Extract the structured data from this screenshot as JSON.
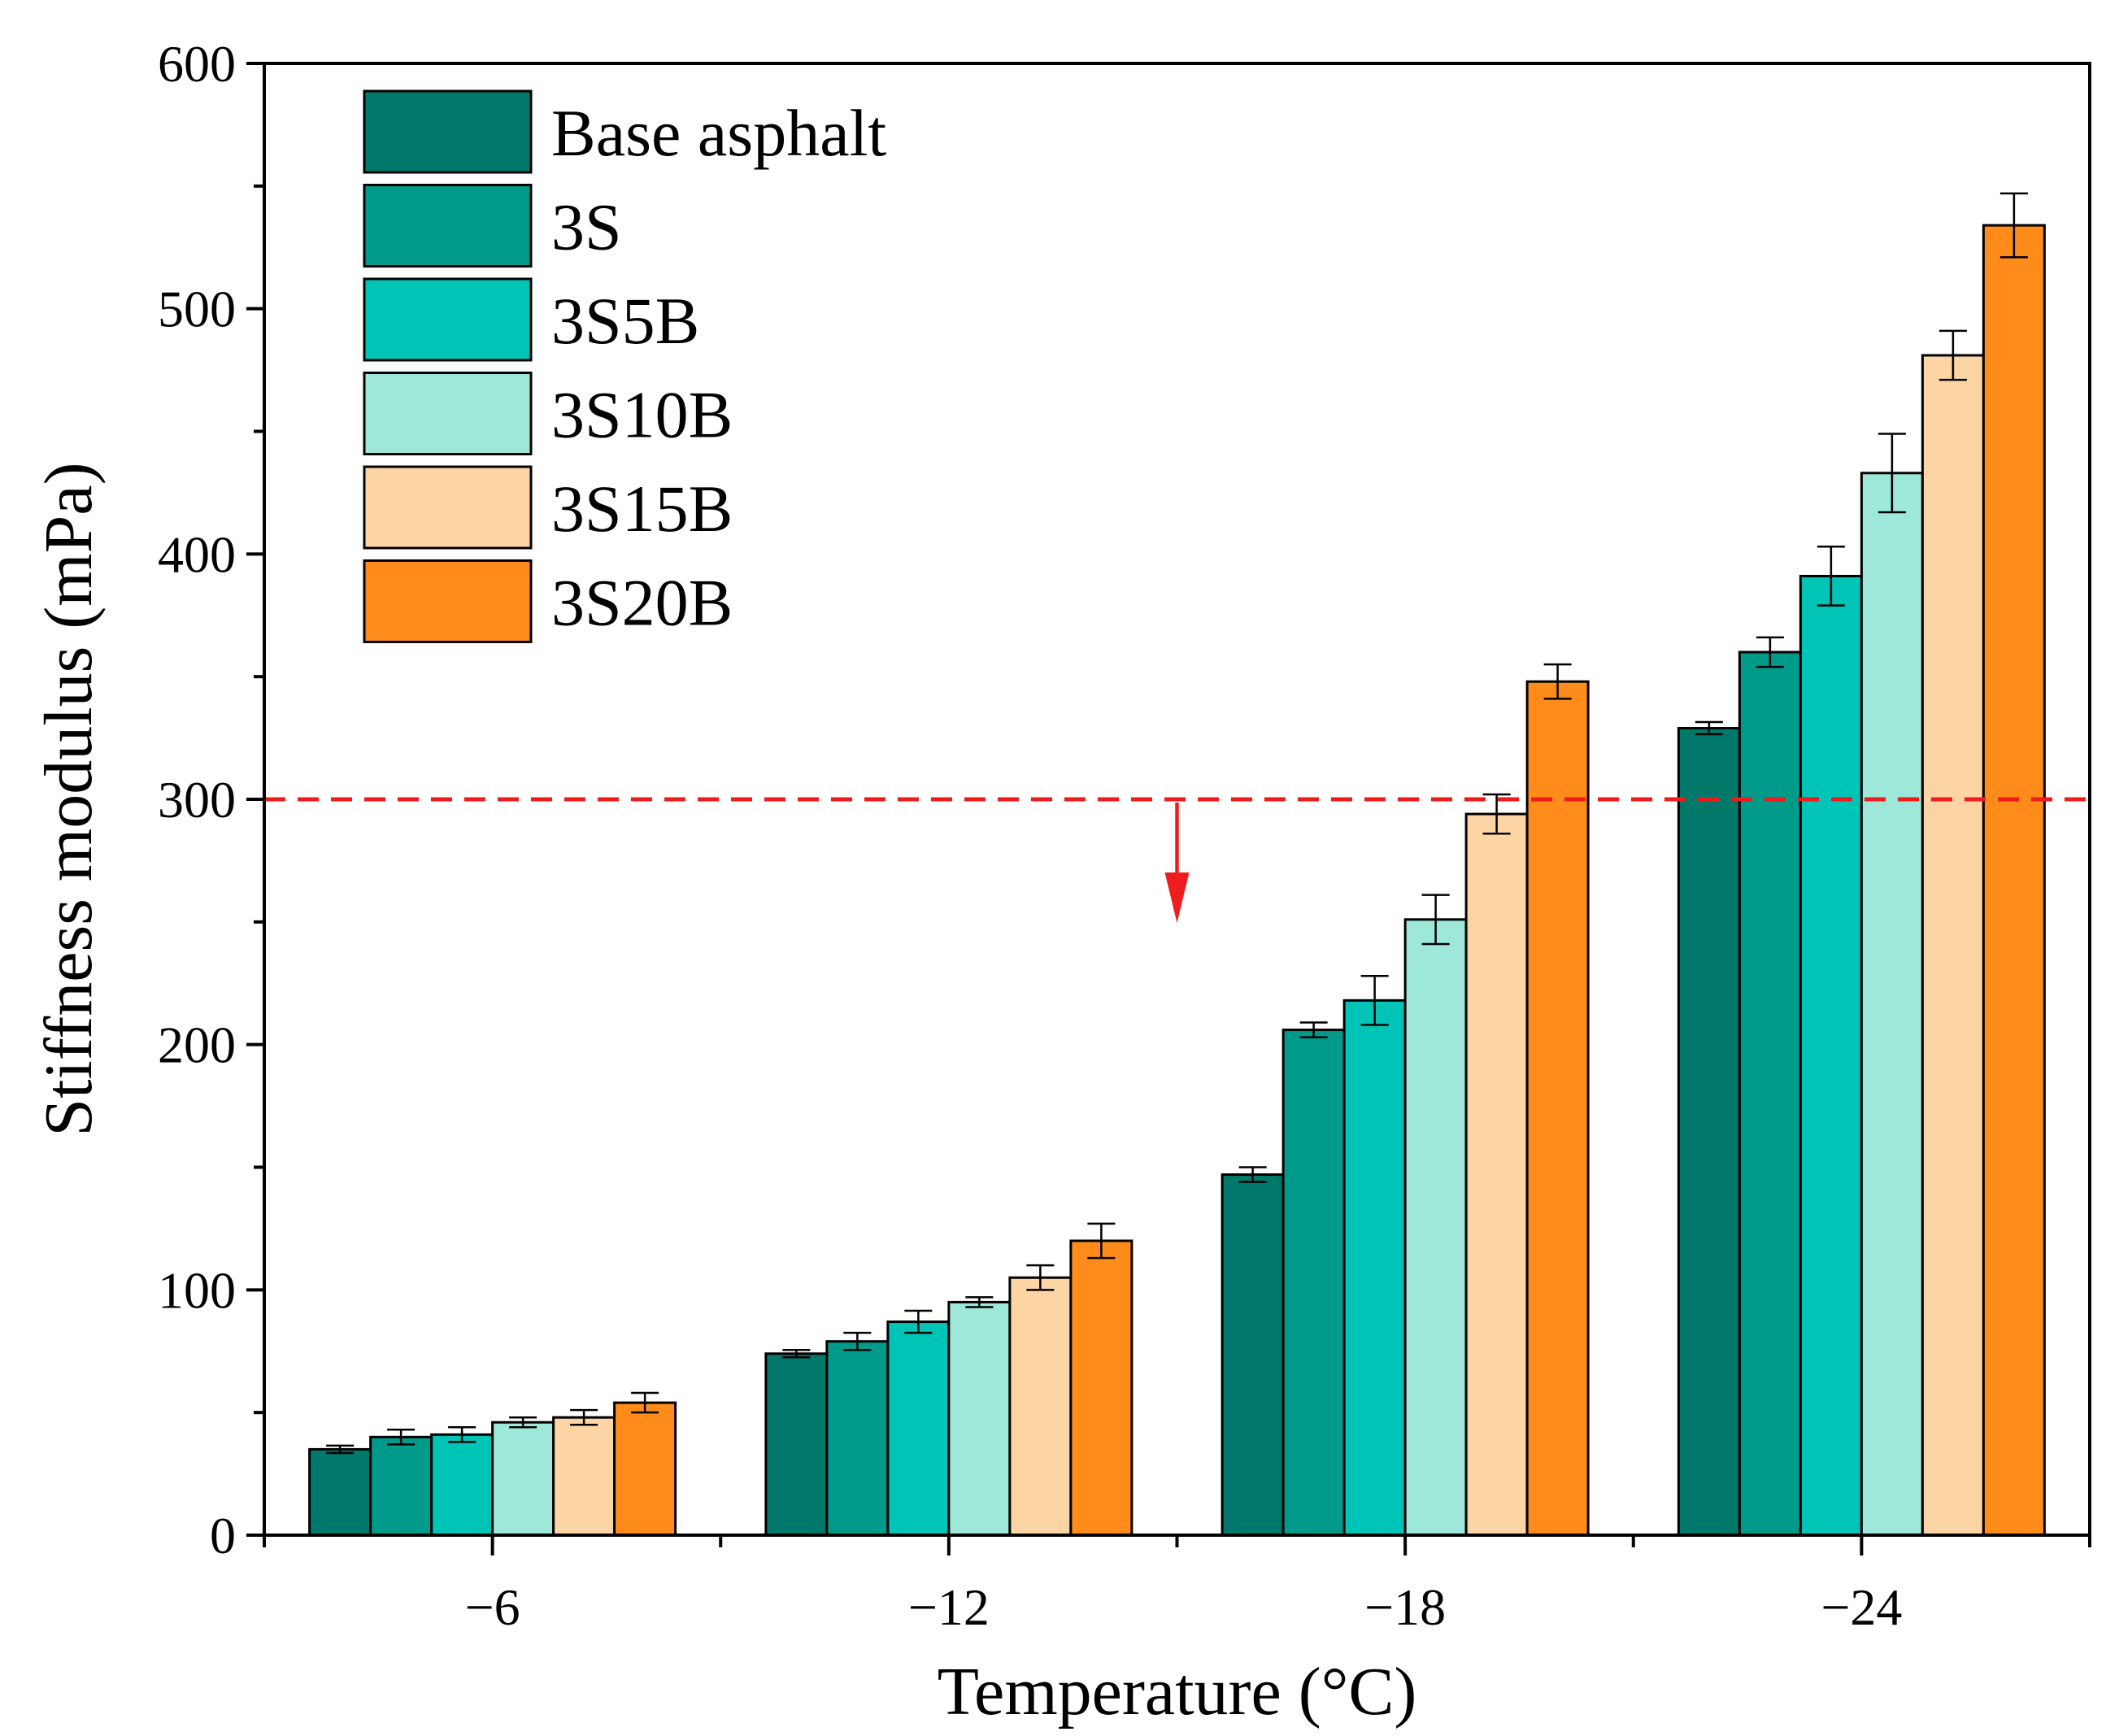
{
  "chart_data": {
    "type": "bar",
    "title": "",
    "xlabel": "Temperature (°C)",
    "ylabel": "Stiffness modulus (mPa)",
    "ylim": [
      0,
      600
    ],
    "yticks": [
      0,
      100,
      200,
      300,
      400,
      500,
      600
    ],
    "categories": [
      "−6",
      "−12",
      "−18",
      "−24"
    ],
    "legend_position": "top-left",
    "series": [
      {
        "name": "Base asphalt",
        "color": "#00796b",
        "values": [
          35,
          74,
          147,
          329
        ],
        "errors": [
          1.5,
          1.5,
          3,
          2.5
        ]
      },
      {
        "name": "3S",
        "color": "#009a8a",
        "values": [
          40,
          79,
          206,
          360
        ],
        "errors": [
          3,
          3.5,
          3,
          6
        ]
      },
      {
        "name": "3S5B",
        "color": "#00c4b6",
        "values": [
          41,
          87,
          218,
          391
        ],
        "errors": [
          3,
          4.5,
          10,
          12
        ]
      },
      {
        "name": "3S10B",
        "color": "#9de8d8",
        "values": [
          46,
          95,
          251,
          433
        ],
        "errors": [
          2,
          2,
          10,
          16
        ]
      },
      {
        "name": "3S15B",
        "color": "#fdd5a4",
        "values": [
          48,
          105,
          294,
          481
        ],
        "errors": [
          3,
          5,
          8,
          10
        ]
      },
      {
        "name": "3S20B",
        "color": "#ff8c1a",
        "values": [
          54,
          120,
          348,
          534
        ],
        "errors": [
          4,
          7,
          7,
          13
        ]
      }
    ],
    "reference_line": {
      "y": 300,
      "color": "#ee1c1c",
      "style": "dashed",
      "arrow": "down"
    }
  }
}
